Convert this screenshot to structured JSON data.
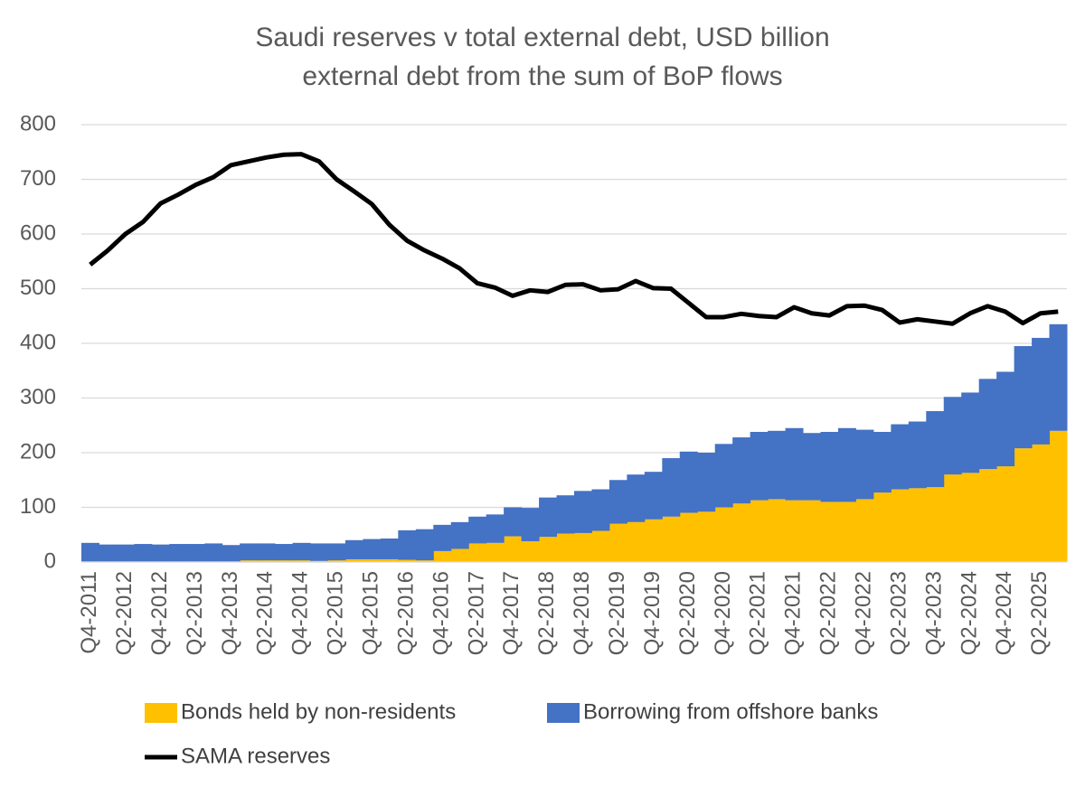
{
  "chart_data": {
    "type": "bar",
    "stacked": true,
    "title": "Saudi reserves v total external debt, USD billion",
    "subtitle": "external debt from the sum of BoP flows",
    "categories": [
      "Q4-2011",
      null,
      "Q2-2012",
      null,
      "Q4-2012",
      null,
      "Q2-2013",
      null,
      "Q4-2013",
      null,
      "Q2-2014",
      null,
      "Q4-2014",
      null,
      "Q2-2015",
      null,
      "Q4-2015",
      null,
      "Q2-2016",
      null,
      "Q4-2016",
      null,
      "Q2-2017",
      null,
      "Q4-2017",
      null,
      "Q2-2018",
      null,
      "Q4-2018",
      null,
      "Q2-2019",
      null,
      "Q4-2019",
      null,
      "Q2-2020",
      null,
      "Q4-2020",
      null,
      "Q2-2021",
      null,
      "Q4-2021",
      null,
      "Q2-2022",
      null,
      "Q4-2022",
      null,
      "Q2-2023",
      null,
      "Q4-2023",
      null,
      "Q2-2024",
      null,
      "Q4-2024",
      null,
      "Q2-2025",
      null
    ],
    "series": [
      {
        "name": "Bonds held by non-residents",
        "type": "bar",
        "color": "#ffc000",
        "values": [
          1,
          1,
          1,
          1,
          1,
          1,
          1,
          1,
          1,
          3,
          3,
          3,
          3,
          2,
          3,
          5,
          5,
          5,
          4,
          3,
          20,
          24,
          34,
          35,
          47,
          38,
          46,
          52,
          53,
          57,
          70,
          73,
          78,
          83,
          90,
          92,
          100,
          107,
          113,
          115,
          113,
          113,
          110,
          110,
          115,
          127,
          133,
          135,
          137,
          160,
          163,
          170,
          175,
          208,
          215,
          240
        ]
      },
      {
        "name": "Borrowing from offshore banks",
        "type": "bar",
        "color": "#4472c4",
        "values": [
          34,
          31,
          31,
          32,
          31,
          32,
          32,
          33,
          30,
          31,
          31,
          30,
          32,
          32,
          31,
          35,
          37,
          38,
          54,
          57,
          48,
          49,
          49,
          52,
          53,
          61,
          72,
          70,
          77,
          76,
          80,
          87,
          87,
          107,
          112,
          108,
          116,
          121,
          125,
          125,
          132,
          123,
          128,
          135,
          127,
          111,
          119,
          122,
          139,
          142,
          147,
          165,
          173,
          187,
          195,
          195
        ]
      },
      {
        "name": "SAMA reserves",
        "type": "line",
        "color": "#000000",
        "values": [
          544,
          570,
          600,
          622,
          656,
          672,
          690,
          704,
          726,
          733,
          740,
          745,
          746,
          733,
          700,
          678,
          655,
          617,
          588,
          570,
          555,
          537,
          510,
          502,
          487,
          497,
          494,
          507,
          508,
          497,
          499,
          514,
          501,
          500,
          474,
          448,
          448,
          454,
          450,
          448,
          466,
          455,
          451,
          468,
          469,
          461,
          438,
          444,
          440,
          436,
          455,
          468,
          458,
          437,
          455,
          458
        ]
      }
    ],
    "ylim": [
      0,
      800
    ],
    "yticks": [
      0,
      100,
      200,
      300,
      400,
      500,
      600,
      700,
      800
    ],
    "grid": true,
    "legend": "bottom"
  }
}
